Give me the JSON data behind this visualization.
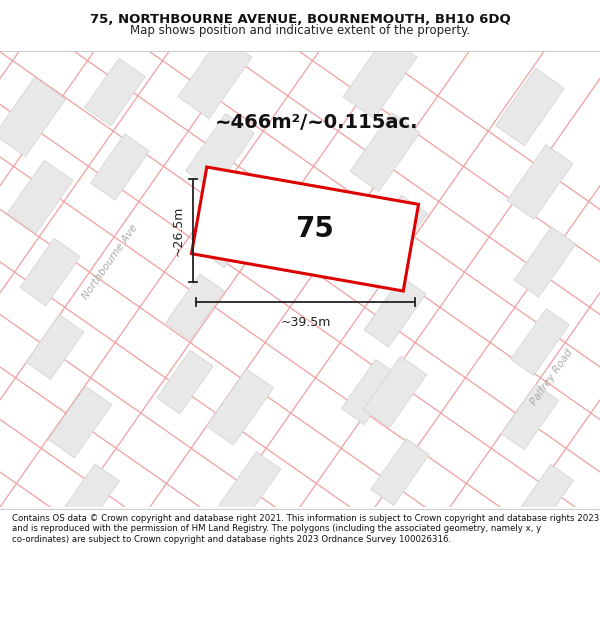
{
  "title_line1": "75, NORTHBOURNE AVENUE, BOURNEMOUTH, BH10 6DQ",
  "title_line2": "Map shows position and indicative extent of the property.",
  "footer_text": "Contains OS data © Crown copyright and database right 2021. This information is subject to Crown copyright and database rights 2023 and is reproduced with the permission of HM Land Registry. The polygons (including the associated geometry, namely x, y co-ordinates) are subject to Crown copyright and database rights 2023 Ordnance Survey 100026316.",
  "area_text": "~466m²/~0.115ac.",
  "width_text": "~39.5m",
  "height_text": "~26.5m",
  "plot_number": "75",
  "map_bg": "#ffffff",
  "building_color": "#e8e8e8",
  "building_edge": "#d0d0d0",
  "plot_outline_color": "#dd0000",
  "road_line_color": "#f0a0a0",
  "road_line_color2": "#e8b0b0",
  "street_label_color": "#aaaaaa",
  "title_bg": "#ffffff",
  "footer_bg": "#ffffff",
  "dim_color": "#222222",
  "title_fontsize": 9.5,
  "subtitle_fontsize": 8.5,
  "area_fontsize": 14,
  "plot_label_fontsize": 20,
  "dim_fontsize": 9,
  "street_fontsize": 7.5,
  "footer_fontsize": 6.2,
  "street_label_nb": "Northbourne Ave",
  "street_label_pr": "Palfrey Road"
}
